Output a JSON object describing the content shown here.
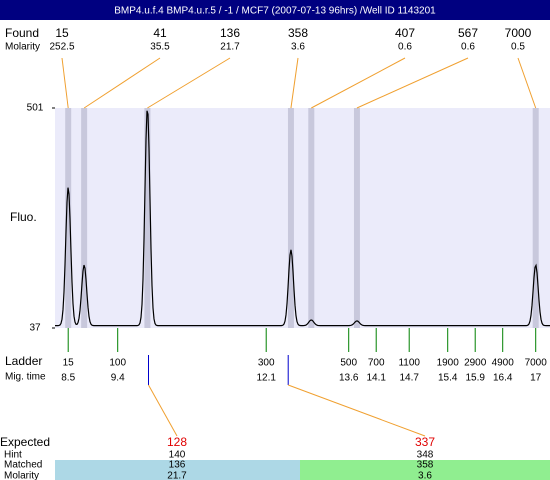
{
  "title": "BMP4.u.f.4  BMP4.u.r.5 / -1 / MCF7 (2007-07-13 96hrs) /Well ID 1143201",
  "found": {
    "label": "Found",
    "molarity_label": "Molarity",
    "peaks": [
      {
        "size": 15,
        "molarity": 252.5,
        "time": 8.5
      },
      {
        "size": 41,
        "molarity": 35.5,
        "time": 8.79
      },
      {
        "size": 136,
        "molarity": 21.7,
        "time": 9.94
      },
      {
        "size": 358,
        "molarity": 3.6,
        "time": 12.55
      },
      {
        "size": 407,
        "molarity": 0.6,
        "time": 12.92
      },
      {
        "size": 567,
        "molarity": 0.6,
        "time": 13.75
      },
      {
        "size": 7000,
        "molarity": 0.5,
        "time": 17
      }
    ]
  },
  "chart": {
    "y_label": "Fluo.",
    "xlim": [
      8.26,
      17.26
    ],
    "ylim": [
      37,
      501
    ],
    "yticks": [
      37,
      501
    ],
    "baseline": 42,
    "trace": [
      {
        "time": 8.5,
        "height": 334
      },
      {
        "time": 8.79,
        "height": 170
      },
      {
        "time": 9.94,
        "height": 501
      },
      {
        "time": 12.55,
        "height": 202
      },
      {
        "time": 12.92,
        "height": 54
      },
      {
        "time": 13.75,
        "height": 52
      },
      {
        "time": 17,
        "height": 170
      }
    ]
  },
  "ladder": {
    "label": "Ladder",
    "time_label": "Mig. time",
    "bands": [
      {
        "size": 15,
        "time": 8.5
      },
      {
        "size": 100,
        "time": 9.4
      },
      {
        "size": 300,
        "time": 12.1
      },
      {
        "size": 500,
        "time": 13.6
      },
      {
        "size": 700,
        "time": 14.1
      },
      {
        "size": 1100,
        "time": 14.7
      },
      {
        "size": 1900,
        "time": 15.4
      },
      {
        "size": 2900,
        "time": 15.9
      },
      {
        "size": 4900,
        "time": 16.4
      },
      {
        "size": 7000,
        "time": 17
      }
    ]
  },
  "expected": {
    "label": "Expected",
    "hint_label": "Hint",
    "matched_label": "Matched",
    "molarity_label": "Molarity",
    "items": [
      {
        "expected": 128,
        "hint": 140,
        "matched": 136,
        "molarity": 21.7,
        "time": 9.96
      },
      {
        "expected": 337,
        "hint": 348,
        "matched": 358,
        "molarity": 3.6,
        "time": 12.5
      }
    ]
  }
}
